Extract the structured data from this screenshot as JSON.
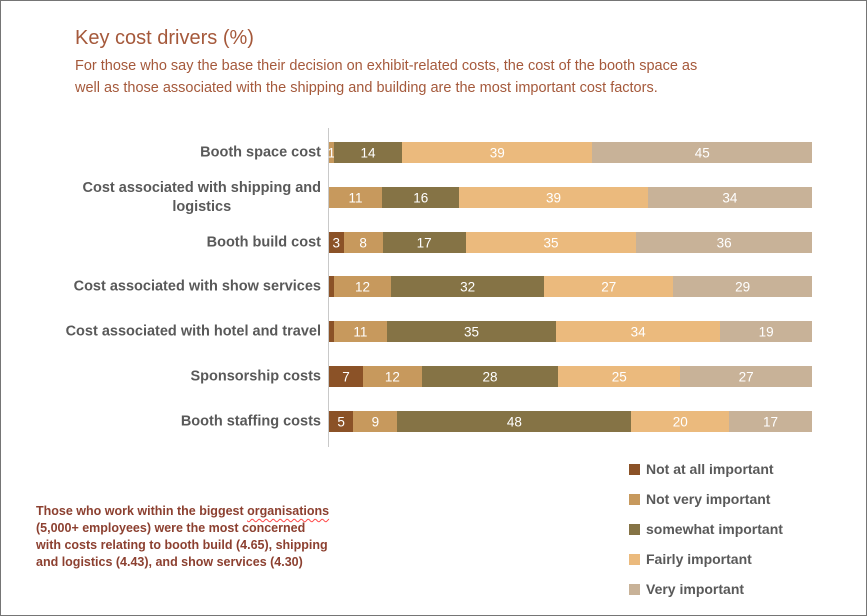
{
  "header": {
    "title": "Key cost drivers (%)",
    "subtitle": "For those who say the base their decision on exhibit-related costs, the cost of the booth space as\nwell as those associated with the shipping and building are the most important cost factors."
  },
  "colors": {
    "title_text": "#A5593B",
    "category_text": "#595959",
    "legend_text": "#595959",
    "value_label_text": "#FFFFFF",
    "axis_line": "#C9C9C9",
    "frame_border": "#757575",
    "footnote_text": "#8C4030",
    "spellcheck_underline": "#FF4545"
  },
  "chart_data": {
    "type": "bar",
    "orientation": "horizontal",
    "stacked": true,
    "unit": "%",
    "xlim": [
      0,
      100
    ],
    "grid": false,
    "legend_position": "bottom-right",
    "categories": [
      "Booth space cost",
      "Cost associated with shipping and\nlogistics",
      "Booth build cost",
      "Cost associated with show services",
      "Cost associated with hotel and travel",
      "Sponsorship costs",
      "Booth staffing costs"
    ],
    "series": [
      {
        "name": "Not at all important",
        "color": "#8B5227",
        "values": [
          0,
          0,
          3,
          1,
          1,
          7,
          5
        ],
        "labels": [
          "",
          "",
          "3",
          "",
          "",
          "7",
          "5"
        ]
      },
      {
        "name": "Not very important",
        "color": "#C7995D",
        "values": [
          1,
          11,
          8,
          12,
          11,
          12,
          9
        ],
        "labels": [
          "1",
          "11",
          "8",
          "12",
          "11",
          "12",
          "9"
        ]
      },
      {
        "name": "somewhat important",
        "color": "#857345",
        "values": [
          14,
          16,
          17,
          32,
          35,
          28,
          48
        ],
        "labels": [
          "14",
          "16",
          "17",
          "32",
          "35",
          "28",
          "48"
        ]
      },
      {
        "name": "Fairly important",
        "color": "#EBBA7D",
        "values": [
          39,
          39,
          35,
          27,
          34,
          25,
          20
        ],
        "labels": [
          "39",
          "39",
          "35",
          "27",
          "34",
          "25",
          "20"
        ]
      },
      {
        "name": "Very important",
        "color": "#C8B298",
        "values": [
          45,
          34,
          36,
          29,
          19,
          27,
          17
        ],
        "labels": [
          "45",
          "34",
          "36",
          "29",
          "19",
          "27",
          "17"
        ]
      }
    ]
  },
  "footnote": {
    "part1": "Those who work within the biggest ",
    "highlight": "organisations",
    "part2": "\n(5,000+ employees) were the most concerned\nwith costs relating to booth build (4.65), shipping\nand logistics (4.43), and show services (4.30)"
  }
}
